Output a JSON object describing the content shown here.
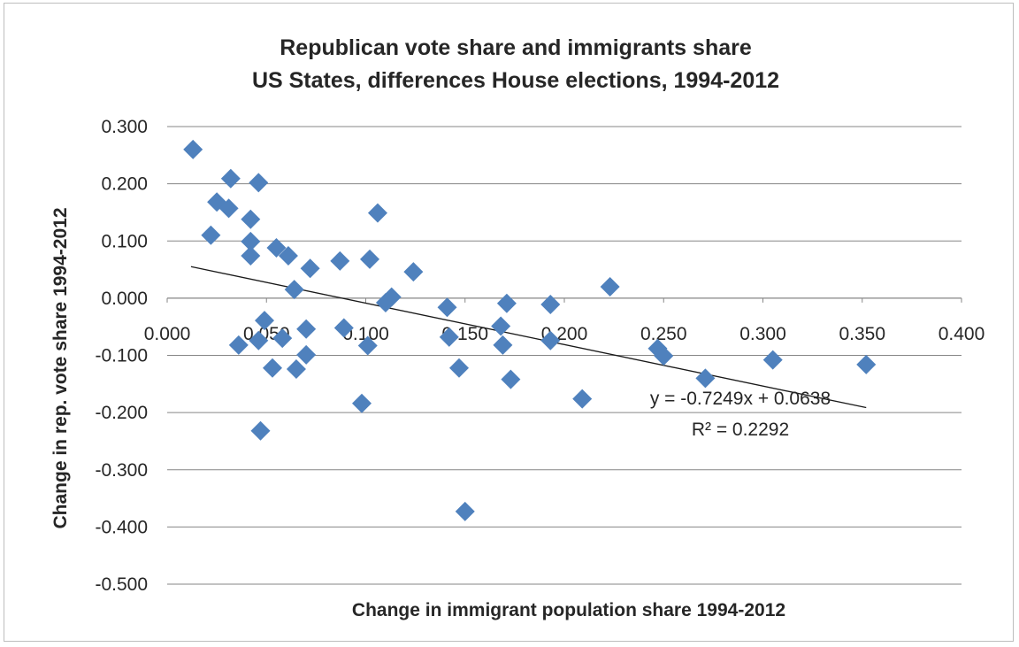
{
  "chart_data": {
    "type": "scatter",
    "title": "Republican vote share and immigrants share",
    "subtitle": "US States, differences House elections, 1994-2012",
    "xlabel": "Change in immigrant population share 1994-2012",
    "ylabel": "Change in  rep. vote share 1994-2012",
    "xlim": [
      0,
      0.4
    ],
    "ylim": [
      -0.5,
      0.3
    ],
    "x_ticks": [
      0,
      0.05,
      0.1,
      0.15,
      0.2,
      0.25,
      0.3,
      0.35,
      0.4
    ],
    "x_tick_labels": [
      "0.000",
      "0.050",
      "0.100",
      "0.150",
      "0.200",
      "0.250",
      "0.300",
      "0.350",
      "0.400"
    ],
    "y_ticks": [
      0.3,
      0.2,
      0.1,
      0,
      -0.1,
      -0.2,
      -0.3,
      -0.4,
      -0.5
    ],
    "y_tick_labels": [
      "0.300",
      "0.200",
      "0.100",
      "0.000",
      "-0.100",
      "-0.200",
      "-0.300",
      "-0.400",
      "-0.500"
    ],
    "grid": "horizontal",
    "marker_color": "#4f81bd",
    "trendline_color": "#1a1a1a",
    "series": [
      {
        "marker": "diamond",
        "points": [
          {
            "x": 0.013,
            "y": 0.26
          },
          {
            "x": 0.022,
            "y": 0.11
          },
          {
            "x": 0.025,
            "y": 0.168
          },
          {
            "x": 0.031,
            "y": 0.157
          },
          {
            "x": 0.032,
            "y": 0.209
          },
          {
            "x": 0.036,
            "y": -0.082
          },
          {
            "x": 0.042,
            "y": 0.138
          },
          {
            "x": 0.042,
            "y": 0.099
          },
          {
            "x": 0.042,
            "y": 0.074
          },
          {
            "x": 0.046,
            "y": 0.202
          },
          {
            "x": 0.046,
            "y": -0.074
          },
          {
            "x": 0.047,
            "y": -0.232
          },
          {
            "x": 0.049,
            "y": -0.039
          },
          {
            "x": 0.053,
            "y": -0.122
          },
          {
            "x": 0.055,
            "y": 0.088
          },
          {
            "x": 0.058,
            "y": -0.07
          },
          {
            "x": 0.061,
            "y": 0.074
          },
          {
            "x": 0.064,
            "y": 0.015
          },
          {
            "x": 0.065,
            "y": -0.124
          },
          {
            "x": 0.07,
            "y": -0.054
          },
          {
            "x": 0.07,
            "y": -0.099
          },
          {
            "x": 0.072,
            "y": 0.052
          },
          {
            "x": 0.087,
            "y": 0.065
          },
          {
            "x": 0.089,
            "y": -0.052
          },
          {
            "x": 0.098,
            "y": -0.184
          },
          {
            "x": 0.101,
            "y": -0.083
          },
          {
            "x": 0.102,
            "y": 0.068
          },
          {
            "x": 0.106,
            "y": 0.149
          },
          {
            "x": 0.11,
            "y": -0.008
          },
          {
            "x": 0.113,
            "y": 0.002
          },
          {
            "x": 0.124,
            "y": 0.046
          },
          {
            "x": 0.141,
            "y": -0.016
          },
          {
            "x": 0.142,
            "y": -0.068
          },
          {
            "x": 0.147,
            "y": -0.122
          },
          {
            "x": 0.15,
            "y": -0.373
          },
          {
            "x": 0.168,
            "y": -0.049
          },
          {
            "x": 0.169,
            "y": -0.082
          },
          {
            "x": 0.171,
            "y": -0.009
          },
          {
            "x": 0.173,
            "y": -0.142
          },
          {
            "x": 0.193,
            "y": -0.011
          },
          {
            "x": 0.193,
            "y": -0.074
          },
          {
            "x": 0.209,
            "y": -0.176
          },
          {
            "x": 0.223,
            "y": 0.02
          },
          {
            "x": 0.247,
            "y": -0.088
          },
          {
            "x": 0.25,
            "y": -0.101
          },
          {
            "x": 0.271,
            "y": -0.14
          },
          {
            "x": 0.305,
            "y": -0.108
          },
          {
            "x": 0.352,
            "y": -0.116
          }
        ]
      }
    ],
    "trendline": {
      "slope": -0.7249,
      "intercept": 0.0638,
      "x_start": 0.012,
      "x_end": 0.352,
      "equation": "y = -0.7249x + 0.0638",
      "r_squared": "R² = 0.2292"
    }
  }
}
